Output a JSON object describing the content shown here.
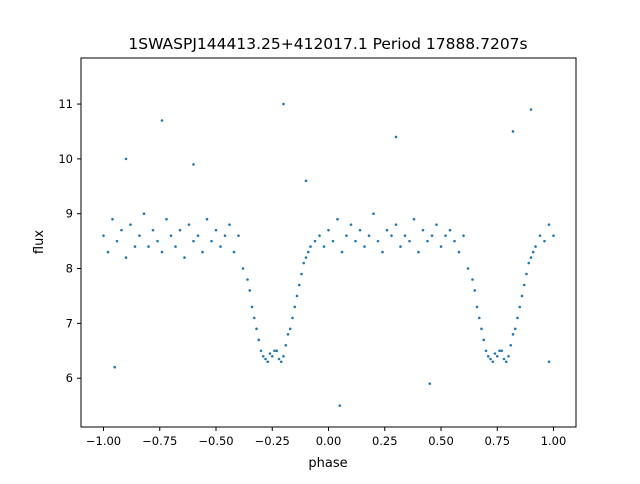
{
  "chart_data": {
    "type": "scatter",
    "title": "1SWASPJ144413.25+412017.1 Period 17888.7207s",
    "xlabel": "phase",
    "ylabel": "flux",
    "xlim": [
      -1.1,
      1.1
    ],
    "ylim": [
      5.11,
      11.84
    ],
    "xticks": [
      -1.0,
      -0.75,
      -0.5,
      -0.25,
      0.0,
      0.25,
      0.5,
      0.75,
      1.0
    ],
    "xtick_labels": [
      "−1.00",
      "−0.75",
      "−0.50",
      "−0.25",
      "0.00",
      "0.25",
      "0.50",
      "0.75",
      "1.00"
    ],
    "yticks": [
      6,
      7,
      8,
      9,
      10,
      11
    ],
    "ytick_labels": [
      "6",
      "7",
      "8",
      "9",
      "10",
      "11"
    ],
    "grid": false,
    "color": "#1f77b4",
    "series": [
      {
        "x": [
          -1.0,
          -0.98,
          -0.96,
          -0.94,
          -0.92,
          -0.9,
          -0.88,
          -0.86,
          -0.84,
          -0.82,
          -0.8,
          -0.78,
          -0.76,
          -0.74,
          -0.72,
          -0.7,
          -0.68,
          -0.66,
          -0.64,
          -0.62,
          -0.6,
          -0.58,
          -0.56,
          -0.54,
          -0.52,
          -0.5,
          -0.48,
          -0.46,
          -0.44,
          -0.42,
          -0.4,
          -0.38,
          -0.36,
          -0.35,
          -0.34,
          -0.33,
          -0.32,
          -0.31,
          -0.3,
          -0.29,
          -0.28,
          -0.27,
          -0.26,
          -0.25,
          -0.24,
          -0.23,
          -0.22,
          -0.21,
          -0.2,
          -0.19,
          -0.18,
          -0.17,
          -0.16,
          -0.15,
          -0.14,
          -0.13,
          -0.12,
          -0.11,
          -0.1,
          -0.09,
          -0.08,
          -0.06,
          -0.04,
          -0.02,
          0.0,
          0.02,
          0.04,
          0.06,
          0.08,
          0.1,
          0.12,
          0.14,
          0.16,
          0.18,
          0.2,
          0.22,
          0.24,
          0.26,
          0.28,
          0.3,
          0.32,
          0.34,
          0.36,
          0.38,
          0.4,
          0.42,
          0.44,
          0.46,
          0.48,
          0.5,
          0.52,
          0.54,
          0.56,
          0.58,
          0.6,
          0.62,
          0.64,
          0.65,
          0.66,
          0.67,
          0.68,
          0.69,
          0.7,
          0.71,
          0.72,
          0.73,
          0.74,
          0.75,
          0.76,
          0.77,
          0.78,
          0.79,
          0.8,
          0.81,
          0.82,
          0.83,
          0.84,
          0.85,
          0.86,
          0.87,
          0.88,
          0.89,
          0.9,
          0.91,
          0.92,
          0.94,
          0.96,
          0.98,
          1.0,
          -0.9,
          -0.2,
          0.3,
          0.9,
          -0.95,
          0.98,
          -0.6,
          0.05,
          -0.74,
          0.45,
          -0.1,
          0.82
        ],
        "y": [
          8.6,
          8.3,
          8.9,
          8.5,
          8.7,
          8.2,
          8.8,
          8.4,
          8.6,
          9.0,
          8.4,
          8.7,
          8.5,
          8.3,
          8.9,
          8.6,
          8.4,
          8.7,
          8.2,
          8.8,
          8.5,
          8.6,
          8.3,
          8.9,
          8.5,
          8.7,
          8.4,
          8.6,
          8.8,
          8.3,
          8.6,
          8.0,
          7.8,
          7.6,
          7.3,
          7.1,
          6.9,
          6.7,
          6.5,
          6.4,
          6.35,
          6.3,
          6.45,
          6.4,
          6.5,
          6.5,
          6.35,
          6.3,
          6.4,
          6.6,
          6.8,
          6.9,
          7.1,
          7.3,
          7.5,
          7.7,
          7.9,
          8.1,
          8.2,
          8.3,
          8.4,
          8.5,
          8.6,
          8.4,
          8.7,
          8.5,
          8.9,
          8.3,
          8.6,
          8.8,
          8.5,
          8.7,
          8.4,
          8.6,
          9.0,
          8.5,
          8.3,
          8.7,
          8.6,
          8.8,
          8.4,
          8.6,
          8.5,
          8.9,
          8.3,
          8.7,
          8.5,
          8.6,
          8.8,
          8.4,
          8.6,
          8.7,
          8.5,
          8.3,
          8.6,
          8.0,
          7.8,
          7.6,
          7.3,
          7.1,
          6.9,
          6.7,
          6.5,
          6.4,
          6.35,
          6.3,
          6.45,
          6.4,
          6.5,
          6.5,
          6.35,
          6.3,
          6.4,
          6.6,
          6.8,
          6.9,
          7.1,
          7.3,
          7.5,
          7.7,
          7.9,
          8.1,
          8.2,
          8.3,
          8.4,
          8.6,
          8.5,
          8.8,
          8.6,
          10.0,
          11.0,
          10.4,
          10.9,
          6.2,
          6.3,
          9.9,
          5.5,
          10.7,
          5.9,
          9.6,
          10.5
        ]
      }
    ]
  }
}
